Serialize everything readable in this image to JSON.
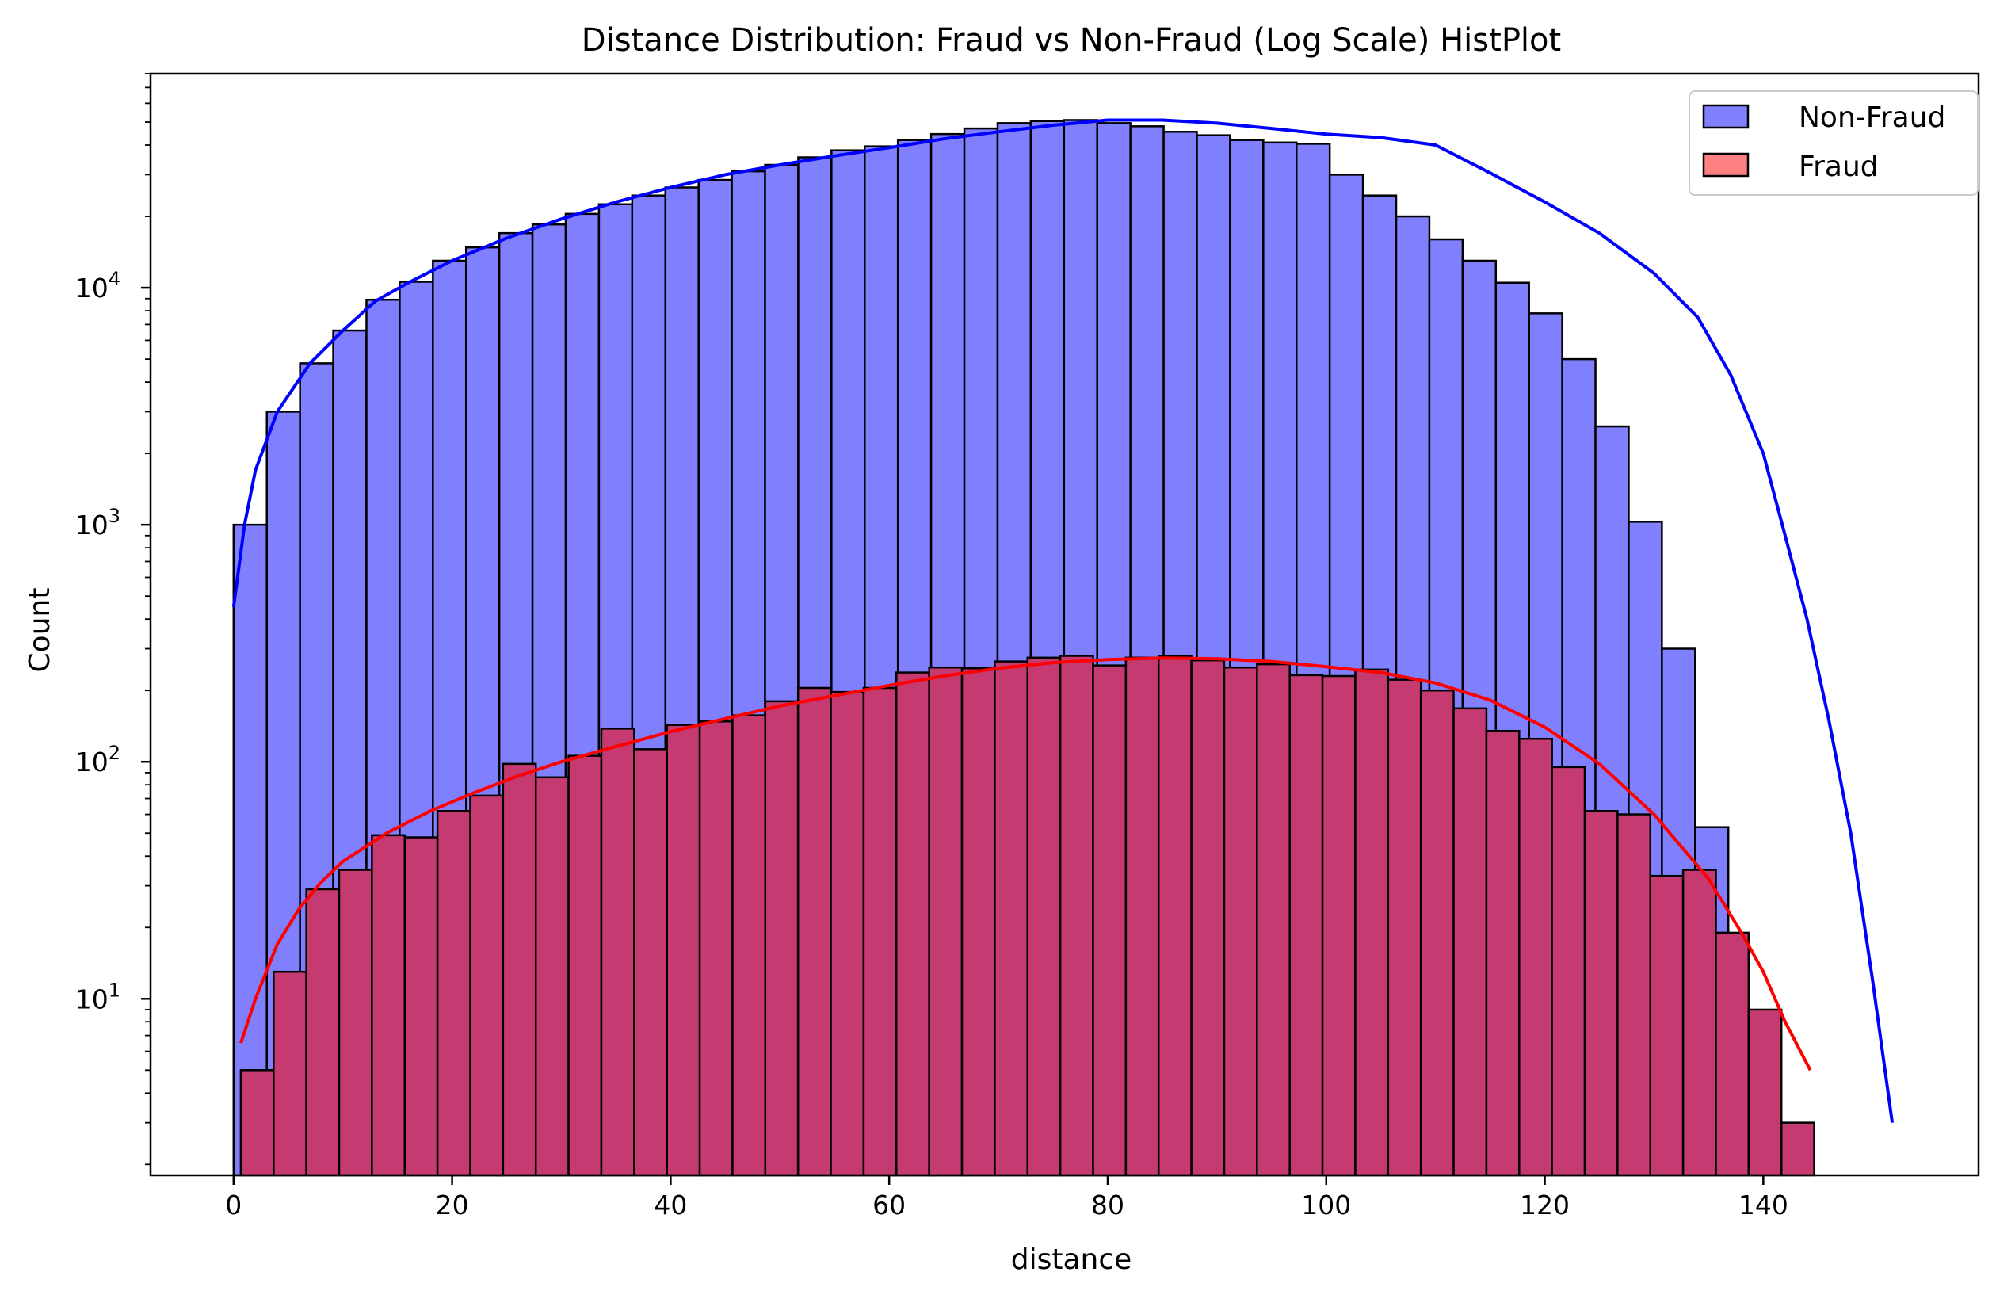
{
  "chart_data": {
    "type": "bar",
    "title": "Distance Distribution: Fraud vs Non-Fraud (Log Scale) HistPlot",
    "xlabel": "distance",
    "ylabel": "Count",
    "xlim": [
      -7.6,
      159.7
    ],
    "ylim": [
      1.8,
      80000
    ],
    "yscale": "log",
    "xticks": [
      0,
      20,
      40,
      60,
      80,
      100,
      120,
      140
    ],
    "yticks": [
      {
        "value": 10,
        "base": "10",
        "exp": "1"
      },
      {
        "value": 100,
        "base": "10",
        "exp": "2"
      },
      {
        "value": 1000,
        "base": "10",
        "exp": "3"
      },
      {
        "value": 10000,
        "base": "10",
        "exp": "4"
      }
    ],
    "legend": {
      "position": "top-right",
      "entries": [
        "Non-Fraud",
        "Fraud"
      ]
    },
    "series": [
      {
        "name": "Non-Fraud",
        "color": "#0000ff",
        "fill": "#8080ff",
        "bin_start": 0.0,
        "bin_width": 3.04,
        "values": [
          1000,
          3000,
          4800,
          6600,
          8900,
          10600,
          13000,
          14800,
          17000,
          18500,
          20500,
          22500,
          24500,
          26500,
          28500,
          31000,
          33000,
          35500,
          38000,
          39500,
          42000,
          44500,
          47000,
          49500,
          50500,
          51000,
          49500,
          48000,
          45500,
          44000,
          42000,
          41000,
          40500,
          30000,
          24500,
          20000,
          16000,
          13000,
          10500,
          7800,
          5000,
          2600,
          1030,
          300,
          53,
          4
        ],
        "kde": [
          [
            0,
            450
          ],
          [
            1,
            1000
          ],
          [
            2,
            1700
          ],
          [
            4,
            3000
          ],
          [
            7,
            4800
          ],
          [
            10,
            6600
          ],
          [
            13,
            8800
          ],
          [
            16,
            10500
          ],
          [
            20,
            13000
          ],
          [
            25,
            16200
          ],
          [
            30,
            19500
          ],
          [
            35,
            23000
          ],
          [
            40,
            26500
          ],
          [
            45,
            30000
          ],
          [
            50,
            33000
          ],
          [
            55,
            36000
          ],
          [
            60,
            39000
          ],
          [
            65,
            42500
          ],
          [
            70,
            45500
          ],
          [
            75,
            48500
          ],
          [
            80,
            51000
          ],
          [
            85,
            51000
          ],
          [
            90,
            49500
          ],
          [
            95,
            47000
          ],
          [
            100,
            44500
          ],
          [
            105,
            43000
          ],
          [
            110,
            40000
          ],
          [
            115,
            30500
          ],
          [
            120,
            23000
          ],
          [
            125,
            17000
          ],
          [
            130,
            11500
          ],
          [
            134,
            7500
          ],
          [
            137,
            4300
          ],
          [
            140,
            2000
          ],
          [
            142,
            900
          ],
          [
            144,
            400
          ],
          [
            146,
            150
          ],
          [
            148,
            50
          ],
          [
            150,
            12
          ],
          [
            151.8,
            3
          ]
        ]
      },
      {
        "name": "Fraud",
        "color": "#ff0000",
        "fill": "#c43a71",
        "bin_start": 0.66,
        "bin_width": 3.0,
        "values": [
          5,
          13,
          29,
          35,
          49,
          48,
          62,
          72,
          98,
          86,
          106,
          138,
          113,
          143,
          148,
          157,
          180,
          205,
          197,
          205,
          238,
          250,
          248,
          265,
          275,
          280,
          255,
          275,
          280,
          268,
          250,
          258,
          232,
          230,
          245,
          222,
          200,
          168,
          135,
          125,
          95,
          62,
          60,
          33,
          35,
          19,
          9,
          3
        ],
        "kde": [
          [
            0.66,
            6.5
          ],
          [
            2,
            10
          ],
          [
            4,
            17
          ],
          [
            6,
            24
          ],
          [
            8,
            31
          ],
          [
            10,
            38
          ],
          [
            14,
            50
          ],
          [
            18,
            62
          ],
          [
            22,
            74
          ],
          [
            26,
            87
          ],
          [
            30,
            100
          ],
          [
            35,
            116
          ],
          [
            40,
            134
          ],
          [
            45,
            152
          ],
          [
            50,
            172
          ],
          [
            55,
            190
          ],
          [
            60,
            210
          ],
          [
            65,
            230
          ],
          [
            70,
            248
          ],
          [
            75,
            262
          ],
          [
            80,
            270
          ],
          [
            85,
            274
          ],
          [
            90,
            272
          ],
          [
            95,
            265
          ],
          [
            100,
            252
          ],
          [
            105,
            238
          ],
          [
            110,
            215
          ],
          [
            115,
            182
          ],
          [
            120,
            140
          ],
          [
            125,
            98
          ],
          [
            130,
            60
          ],
          [
            135,
            32
          ],
          [
            138,
            19
          ],
          [
            140,
            13
          ],
          [
            142,
            8
          ],
          [
            144.3,
            5
          ]
        ]
      }
    ]
  }
}
